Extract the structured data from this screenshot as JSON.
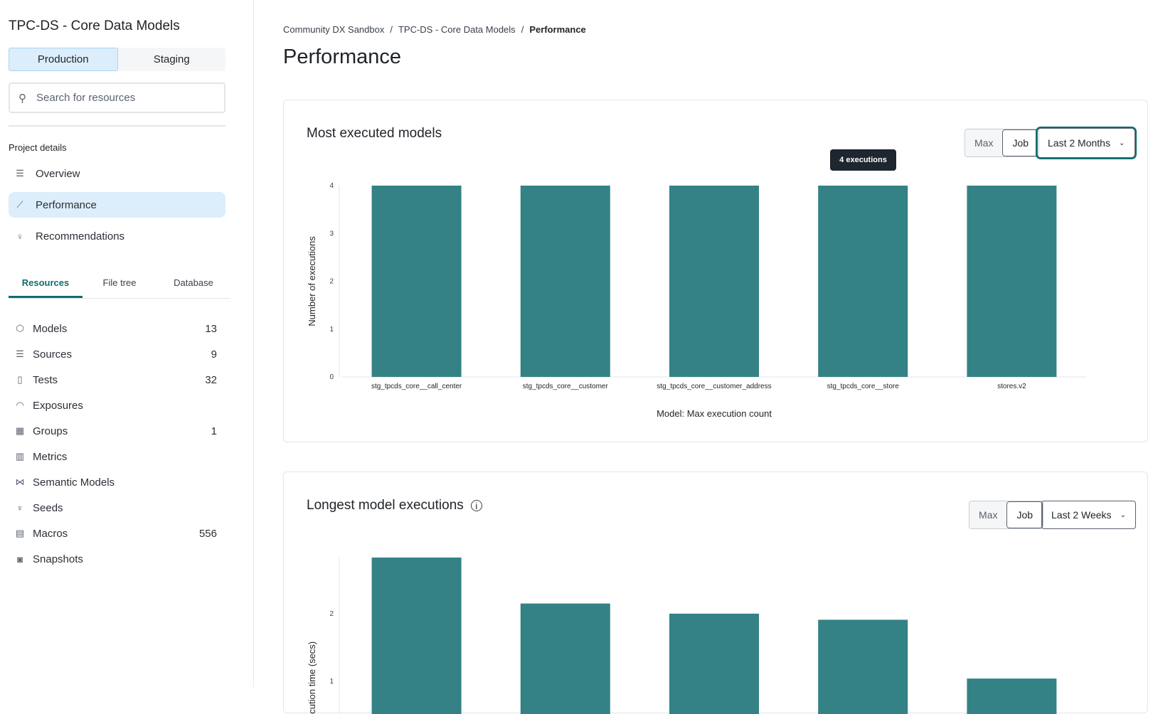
{
  "sidebar": {
    "project_title": "TPC-DS - Core Data Models",
    "environments": [
      "Production",
      "Staging"
    ],
    "active_environment": "Production",
    "search_placeholder": "Search for resources",
    "section_label": "Project details",
    "nav": [
      {
        "label": "Overview",
        "icon": "list-icon"
      },
      {
        "label": "Performance",
        "icon": "line-chart-icon",
        "active": true
      },
      {
        "label": "Recommendations",
        "icon": "lightbulb-icon"
      }
    ],
    "tabs": [
      "Resources",
      "File tree",
      "Database"
    ],
    "active_tab": "Resources",
    "resources": [
      {
        "label": "Models",
        "count": "13",
        "icon": "cube-icon"
      },
      {
        "label": "Sources",
        "count": "9",
        "icon": "database-icon"
      },
      {
        "label": "Tests",
        "count": "32",
        "icon": "clipboard-icon"
      },
      {
        "label": "Exposures",
        "count": "",
        "icon": "gauge-icon"
      },
      {
        "label": "Groups",
        "count": "1",
        "icon": "grid-icon"
      },
      {
        "label": "Metrics",
        "count": "",
        "icon": "bar-chart-icon"
      },
      {
        "label": "Semantic Models",
        "count": "",
        "icon": "nodes-icon"
      },
      {
        "label": "Seeds",
        "count": "",
        "icon": "seedling-icon"
      },
      {
        "label": "Macros",
        "count": "556",
        "icon": "file-icon"
      },
      {
        "label": "Snapshots",
        "count": "",
        "icon": "camera-icon"
      }
    ]
  },
  "breadcrumb": [
    "Community DX Sandbox",
    "TPC-DS - Core Data Models",
    "Performance"
  ],
  "page_title": "Performance",
  "colors": {
    "bar": "#348285",
    "accent": "#106e6e",
    "tooltip": "#1e2630"
  },
  "chart_data": [
    {
      "type": "bar",
      "title": "Most executed models",
      "toggle": [
        "Max",
        "Job"
      ],
      "toggle_selected": "Job",
      "range": "Last 2 Months",
      "categories": [
        "stg_tpcds_core__call_center",
        "stg_tpcds_core__customer",
        "stg_tpcds_core__customer_address",
        "stg_tpcds_core__store",
        "stores.v2"
      ],
      "values": [
        4,
        4,
        4,
        4,
        4
      ],
      "ylabel": "Number of executions",
      "xlabel": "Model: Max execution count",
      "ylim": [
        0,
        4
      ],
      "yticks": [
        0,
        1,
        2,
        3,
        4
      ],
      "tooltip": {
        "category_index": 3,
        "text": "4 executions"
      }
    },
    {
      "type": "bar",
      "title": "Longest model executions",
      "info_icon": "info-icon",
      "toggle": [
        "Max",
        "Job"
      ],
      "toggle_selected": "Job",
      "range": "Last 2 Weeks",
      "values": [
        2.83,
        2.15,
        2.0,
        1.91,
        1.04
      ],
      "ylabel": "Execution time (secs)",
      "yticks": [
        1,
        2
      ]
    }
  ]
}
